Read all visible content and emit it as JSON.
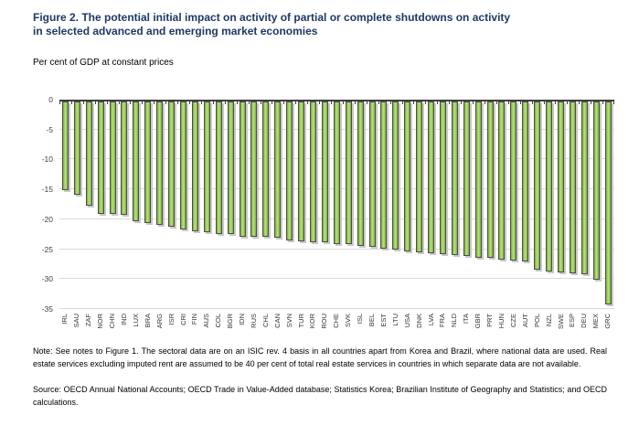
{
  "figure": {
    "title_line1": "Figure 2. The potential initial impact on activity of partial or complete shutdowns on activity",
    "title_line2": "in selected advanced and emerging market economies",
    "subtitle": "Per cent of GDP at constant prices",
    "note": "Note: See notes to Figure 1. The sectoral data are on an ISIC rev. 4 basis in all countries apart from Korea and Brazil, where national data are used. Real estate services excluding imputed rent are assumed to be 40 per cent of total real estate services in countries in which separate data are not available.",
    "source": "Source: OECD Annual National Accounts; OECD Trade in Value-Added database; Statistics Korea; Brazilian Institute of Geography and Statistics; and OECD calculations."
  },
  "chart_data": {
    "type": "bar",
    "title": "Figure 2. The potential initial impact on activity of partial or complete shutdowns on activity in selected advanced and emerging market economies",
    "ylabel": "Per cent of GDP at constant prices",
    "xlabel": "",
    "ylim": [
      -35,
      0
    ],
    "yticks": [
      0,
      -5,
      -10,
      -15,
      -20,
      -25,
      -30,
      -35
    ],
    "grid": true,
    "legend": "none",
    "categories": [
      "IRL",
      "SAU",
      "ZAF",
      "NOR",
      "CHN",
      "IND",
      "LUX",
      "BRA",
      "ARG",
      "ISR",
      "CRI",
      "FIN",
      "AUS",
      "COL",
      "BGR",
      "IDN",
      "RUS",
      "CHL",
      "CAN",
      "SVN",
      "TUR",
      "KOR",
      "ROU",
      "CHE",
      "SVK",
      "ISL",
      "BEL",
      "EST",
      "LTU",
      "USA",
      "DNK",
      "LVA",
      "FRA",
      "NLD",
      "ITA",
      "GBR",
      "PRT",
      "HUN",
      "CZE",
      "AUT",
      "POL",
      "NZL",
      "SWE",
      "ESP",
      "DEU",
      "MEX",
      "GRC"
    ],
    "values": [
      -15.2,
      -15.9,
      -17.7,
      -19.1,
      -19.1,
      -19.2,
      -20.3,
      -20.6,
      -20.9,
      -21.2,
      -21.7,
      -22.0,
      -22.2,
      -22.4,
      -22.5,
      -22.9,
      -23.0,
      -23.0,
      -23.1,
      -23.5,
      -23.7,
      -23.8,
      -23.9,
      -24.1,
      -24.2,
      -24.4,
      -24.6,
      -24.9,
      -25.1,
      -25.3,
      -25.5,
      -25.7,
      -25.9,
      -26.0,
      -26.2,
      -26.4,
      -26.5,
      -26.7,
      -26.9,
      -27.0,
      -28.5,
      -28.7,
      -28.9,
      -29.0,
      -29.2,
      -30.1,
      -34.3
    ],
    "colors": {
      "bar_fill": "#8DC63F",
      "bar_fill_light": "#B9E284",
      "bar_fill_dark": "#7CAF35",
      "bar_border": "#4D4D4D",
      "gridline": "#D9D9D9",
      "zero_line": "#3F3F3F",
      "title_blue": "#1F3864"
    }
  }
}
